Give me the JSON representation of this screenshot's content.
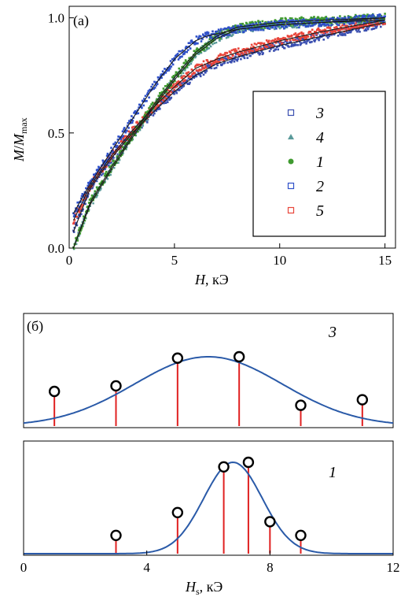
{
  "colors": {
    "s3": "#3b4fb0",
    "s4": "#5a9a9a",
    "s1": "#3f9a2f",
    "s2": "#2f50c8",
    "s5": "#e8453a",
    "fit": "#1a1a1a",
    "gauss": "#2a5aa8",
    "stem": "#e02020"
  },
  "chart_data": [
    {
      "id": "a",
      "type": "scatter",
      "panel_label": "(a)",
      "xlabel_main": "H",
      "xlabel_unit": ", кЭ",
      "ylabel_main": "M",
      "ylabel_sep": "/",
      "ylabel_den": "M",
      "ylabel_sub": "max",
      "xlim": [
        0,
        15.5
      ],
      "ylim": [
        0,
        1.05
      ],
      "xticks": [
        "0",
        "5",
        "10",
        "15"
      ],
      "xtick_values": [
        0,
        5,
        10,
        15
      ],
      "yticks": [
        "0.0",
        "0.5",
        "1.0"
      ],
      "ytick_values": [
        0,
        0.5,
        1.0
      ],
      "legend_position": "right",
      "legend": [
        {
          "label": "3",
          "series": "s3",
          "marker": "square-open"
        },
        {
          "label": "4",
          "series": "s4",
          "marker": "triangle"
        },
        {
          "label": "1",
          "series": "s1",
          "marker": "circle"
        },
        {
          "label": "2",
          "series": "s2",
          "marker": "square-open"
        },
        {
          "label": "5",
          "series": "s5",
          "marker": "square-open"
        }
      ],
      "series": [
        {
          "key": "s2",
          "x": [
            0.2,
            1,
            2,
            3,
            4,
            5,
            6,
            6.5,
            7,
            8,
            10,
            12,
            15
          ],
          "y": [
            0.15,
            0.28,
            0.42,
            0.56,
            0.7,
            0.82,
            0.9,
            0.92,
            0.93,
            0.95,
            0.97,
            0.98,
            1.0
          ]
        },
        {
          "key": "s1",
          "x": [
            0.2,
            1,
            2,
            3,
            4,
            5,
            6,
            7,
            7.5,
            8,
            10,
            12,
            15
          ],
          "y": [
            0.0,
            0.2,
            0.35,
            0.49,
            0.62,
            0.74,
            0.85,
            0.92,
            0.94,
            0.96,
            0.98,
            0.99,
            1.0
          ]
        },
        {
          "key": "s4",
          "x": [
            0.2,
            1,
            2,
            3,
            4,
            5,
            6,
            7,
            7.5,
            8,
            10,
            12,
            15
          ],
          "y": [
            0.0,
            0.19,
            0.34,
            0.48,
            0.61,
            0.73,
            0.84,
            0.91,
            0.93,
            0.95,
            0.97,
            0.98,
            0.99
          ]
        },
        {
          "key": "s3",
          "x": [
            0.2,
            1,
            2,
            3,
            4,
            5,
            6,
            7,
            8,
            10,
            12,
            15
          ],
          "y": [
            0.07,
            0.26,
            0.39,
            0.5,
            0.59,
            0.68,
            0.75,
            0.8,
            0.83,
            0.88,
            0.92,
            0.98
          ]
        },
        {
          "key": "s5",
          "x": [
            0.2,
            1,
            2,
            3,
            4,
            5,
            6,
            7,
            8,
            10,
            12,
            15
          ],
          "y": [
            0.12,
            0.27,
            0.4,
            0.51,
            0.61,
            0.7,
            0.78,
            0.82,
            0.85,
            0.9,
            0.94,
            0.99
          ]
        }
      ]
    },
    {
      "id": "b3",
      "type": "line",
      "panel_label": "(б)",
      "curve_label": "3",
      "xlim": [
        0,
        12
      ],
      "gauss_mean": 6.0,
      "gauss_sigma": 2.4,
      "stems": {
        "x": [
          1,
          3,
          5,
          7,
          9,
          11
        ],
        "y": [
          0.5,
          0.58,
          0.98,
          1.0,
          0.3,
          0.38
        ]
      }
    },
    {
      "id": "b1",
      "type": "line",
      "curve_label": "1",
      "xlim": [
        0,
        12
      ],
      "xticks": [
        "0",
        "4",
        "8",
        "12"
      ],
      "xtick_values": [
        0,
        4,
        8,
        12
      ],
      "xlabel_main": "H",
      "xlabel_sub": "s",
      "xlabel_unit": ", кЭ",
      "gauss_mean": 6.8,
      "gauss_sigma": 0.95,
      "stems": {
        "x": [
          3,
          5,
          6.5,
          7.3,
          8,
          9
        ],
        "y": [
          0.2,
          0.45,
          0.95,
          1.0,
          0.35,
          0.2
        ]
      }
    }
  ]
}
